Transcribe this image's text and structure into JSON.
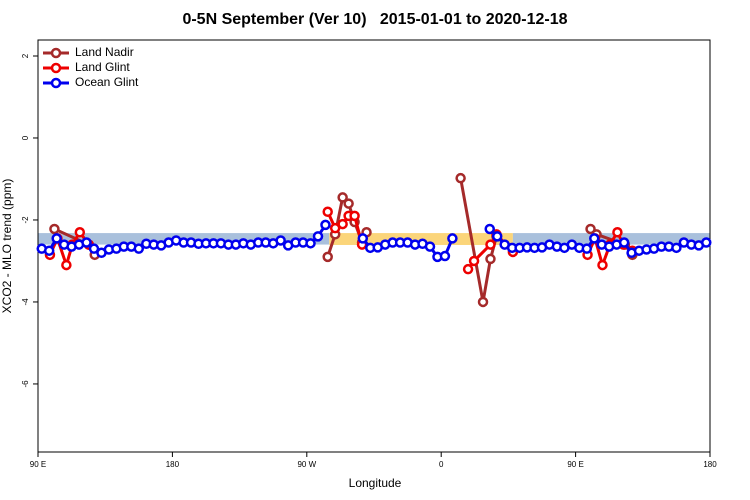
{
  "chart_data": {
    "type": "line",
    "title": "0-5N September (Ver 10)   2015-01-01 to 2020-12-18",
    "x_label": "Longitude",
    "y_label": "XCO2 - MLO trend (ppm)",
    "xlim": [
      90,
      540
    ],
    "ylim": [
      -7.66,
      2.39
    ],
    "xticks": [
      {
        "value": 90,
        "label": "90 E"
      },
      180,
      {
        "value": 270,
        "label": "90 W"
      },
      {
        "value": 360,
        "label": "0"
      },
      {
        "value": 450,
        "label": "90 E"
      },
      {
        "value": 540,
        "label": "180"
      }
    ],
    "yticks": [
      2,
      0,
      -2,
      -4,
      -6
    ],
    "legend": "top-left",
    "bands": [
      {
        "x": [
          90,
          285
        ],
        "y": [
          -2.6,
          -2.32
        ],
        "color": "#a9c0dc"
      },
      {
        "x": [
          285,
          408
        ],
        "y": [
          -2.61,
          -2.32
        ],
        "color": "#fbd57a"
      },
      {
        "x": [
          408,
          540
        ],
        "y": [
          -2.6,
          -2.32
        ],
        "color": "#a9c0dc"
      }
    ],
    "series": [
      {
        "name": "Land Nadir",
        "color": "#a52a2a",
        "x": [
          101,
          124,
          128,
          null,
          284,
          289,
          294,
          298,
          302,
          307,
          310,
          null,
          373,
          388,
          393,
          397,
          null,
          460,
          464,
          483,
          488
        ],
        "values": [
          -2.22,
          -2.6,
          -2.85,
          null,
          -2.9,
          -2.35,
          -1.45,
          -1.6,
          -2.05,
          -2.55,
          -2.3,
          null,
          -0.98,
          -4.0,
          -2.95,
          -2.4,
          null,
          -2.22,
          -2.35,
          -2.6,
          -2.85
        ]
      },
      {
        "name": "Land Glint",
        "color": "#ee0000",
        "x": [
          98,
          103,
          109,
          113,
          118,
          124,
          null,
          284,
          289,
          294,
          298,
          302,
          307,
          null,
          378,
          382,
          393,
          397,
          408,
          null,
          458,
          463,
          468,
          473,
          478,
          482,
          488
        ],
        "values": [
          -2.85,
          -2.45,
          -3.1,
          -2.6,
          -2.3,
          -2.6,
          null,
          -1.8,
          -2.2,
          -2.1,
          -1.9,
          -1.9,
          -2.6,
          null,
          -3.2,
          -3.0,
          -2.6,
          -2.35,
          -2.78,
          null,
          -2.85,
          -2.45,
          -3.1,
          -2.6,
          -2.3,
          -2.6,
          -2.75
        ]
      },
      {
        "name": "Ocean Glint",
        "color": "#0000ee",
        "x": [
          92.5,
          97.5,
          102.5,
          107.5,
          112.5,
          117.5,
          122.5,
          127.5,
          132.5,
          137.5,
          142.5,
          147.5,
          152.5,
          157.5,
          162.5,
          167.5,
          172.5,
          177.5,
          182.5,
          187.5,
          192.5,
          197.5,
          202.5,
          207.5,
          212.5,
          217.5,
          222.5,
          227.5,
          232.5,
          237.5,
          242.5,
          247.5,
          252.5,
          257.5,
          262.5,
          267.5,
          272.5,
          277.5,
          282.5,
          287.5,
          292.5,
          297.5,
          302.5,
          307.5,
          312.5,
          317.5,
          322.5,
          327.5,
          332.5,
          337.5,
          342.5,
          347.5,
          352.5,
          357.5,
          362.5,
          367.5,
          372.5,
          377.5,
          382.5,
          387.5,
          392.5,
          397.5,
          402.5,
          407.5,
          412.5,
          417.5,
          422.5,
          427.5,
          432.5,
          437.5,
          442.5,
          447.5,
          452.5,
          457.5,
          462.5,
          467.5,
          472.5,
          477.5,
          482.5,
          487.5,
          492.5,
          497.5,
          502.5,
          507.5,
          512.5,
          517.5,
          522.5,
          527.5,
          532.5,
          537.5
        ],
        "values": [
          -2.7,
          -2.75,
          -2.45,
          -2.6,
          -2.65,
          -2.6,
          -2.55,
          -2.7,
          -2.8,
          -2.72,
          -2.7,
          -2.65,
          -2.65,
          -2.7,
          -2.58,
          -2.6,
          -2.62,
          -2.55,
          -2.5,
          -2.55,
          -2.55,
          -2.58,
          -2.57,
          -2.57,
          -2.57,
          -2.6,
          -2.6,
          -2.57,
          -2.6,
          -2.55,
          -2.55,
          -2.57,
          -2.5,
          -2.62,
          -2.55,
          -2.55,
          -2.57,
          -2.4,
          -2.12,
          null,
          null,
          null,
          null,
          -2.45,
          -2.68,
          -2.67,
          -2.6,
          -2.55,
          -2.55,
          -2.55,
          -2.6,
          -2.58,
          -2.65,
          -2.9,
          -2.88,
          -2.45,
          null,
          null,
          null,
          null,
          -2.22,
          -2.4,
          -2.6,
          -2.68,
          -2.68,
          -2.67,
          -2.68,
          -2.67,
          -2.6,
          -2.65,
          -2.68,
          -2.6,
          -2.68,
          -2.7,
          -2.45,
          -2.6,
          -2.65,
          -2.6,
          -2.55,
          -2.8,
          -2.75,
          -2.72,
          -2.7,
          -2.65,
          -2.65,
          -2.68,
          -2.55,
          -2.6,
          -2.62,
          -2.55
        ]
      }
    ]
  }
}
